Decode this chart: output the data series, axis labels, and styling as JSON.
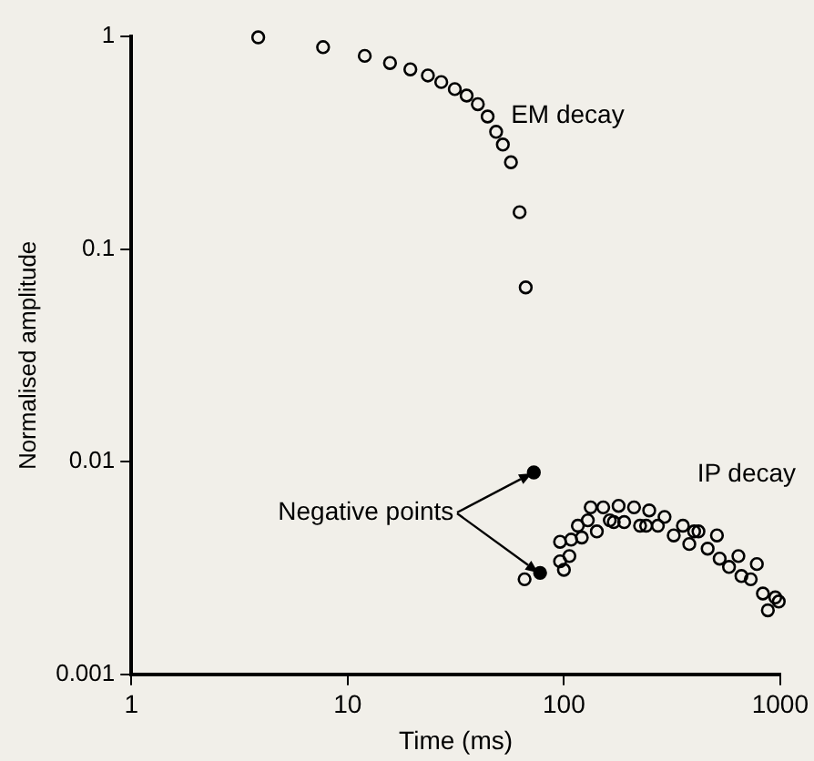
{
  "chart_data": {
    "type": "scatter",
    "xlabel": "Time (ms)",
    "ylabel": "Normalised amplitude",
    "log": "xy",
    "xlim": [
      1,
      1000
    ],
    "ylim": [
      0.001,
      1
    ],
    "xticks": [
      1,
      10,
      100,
      1000
    ],
    "yticks": [
      0.001,
      0.01,
      0.1,
      1
    ],
    "grid": false,
    "legend": false,
    "marker": "circle",
    "series": [
      {
        "color": "#000000",
        "x": [
          3.86,
          7.7,
          12,
          15.7,
          19.5,
          23.5,
          27.1,
          31.3,
          35.5,
          40,
          44.4,
          48.6,
          52.2,
          56.9,
          62.4,
          66.6,
          65.8,
          96,
          96,
          100,
          106,
          108,
          116,
          121,
          129,
          133,
          142,
          152,
          163,
          170,
          179,
          190,
          211,
          225,
          240,
          248,
          272,
          292,
          322,
          355,
          380,
          400,
          419,
          462,
          510,
          525,
          580,
          641,
          662,
          731,
          780,
          832,
          877,
          949,
          985
        ],
        "values": [
          0.99,
          0.89,
          0.81,
          0.75,
          0.7,
          0.655,
          0.61,
          0.565,
          0.527,
          0.48,
          0.42,
          0.356,
          0.31,
          0.256,
          0.149,
          0.066,
          0.0028,
          0.0034,
          0.0042,
          0.0031,
          0.0036,
          0.0043,
          0.005,
          0.0044,
          0.0053,
          0.0061,
          0.0047,
          0.0061,
          0.0053,
          0.0052,
          0.0062,
          0.0052,
          0.0061,
          0.005,
          0.005,
          0.0059,
          0.005,
          0.0055,
          0.0045,
          0.005,
          0.0041,
          0.0047,
          0.0047,
          0.0039,
          0.0045,
          0.0035,
          0.0032,
          0.0036,
          0.0029,
          0.0028,
          0.0033,
          0.0024,
          0.002,
          0.0023,
          0.0022
        ]
      },
      {
        "color": "#000000",
        "x": [
          72.6,
          77.6
        ],
        "values": [
          0.0089,
          0.003
        ]
      }
    ],
    "annotations": [
      "EM decay",
      {
        "text": "Negative points",
        "x": 72.6,
        "y": 0.0089
      },
      "IP decay"
    ]
  }
}
